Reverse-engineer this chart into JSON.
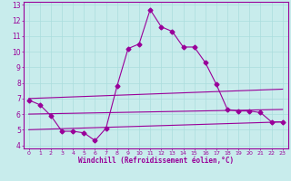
{
  "xlabel": "Windchill (Refroidissement éolien,°C)",
  "xlim": [
    -0.5,
    23.5
  ],
  "ylim": [
    3.8,
    13.2
  ],
  "yticks": [
    4,
    5,
    6,
    7,
    8,
    9,
    10,
    11,
    12,
    13
  ],
  "xticks": [
    0,
    1,
    2,
    3,
    4,
    5,
    6,
    7,
    8,
    9,
    10,
    11,
    12,
    13,
    14,
    15,
    16,
    17,
    18,
    19,
    20,
    21,
    22,
    23
  ],
  "bg_color": "#c8ecec",
  "line_color": "#990099",
  "grid_color": "#aadddd",
  "lines": [
    {
      "x": [
        0,
        1,
        2,
        3,
        4,
        5,
        6,
        7,
        8,
        9,
        10,
        11,
        12,
        13,
        14,
        15,
        16,
        17,
        18,
        19,
        20,
        21,
        22,
        23
      ],
      "y": [
        6.9,
        6.6,
        5.9,
        4.9,
        4.9,
        4.8,
        4.3,
        5.1,
        7.8,
        10.2,
        10.5,
        12.7,
        11.6,
        11.3,
        10.3,
        10.3,
        9.3,
        7.9,
        6.3,
        6.2,
        6.2,
        6.1,
        5.5,
        5.5
      ],
      "marker": "D",
      "markersize": 2.5,
      "linewidth": 0.8
    },
    {
      "x": [
        0,
        23
      ],
      "y": [
        7.0,
        7.6
      ],
      "marker": null,
      "markersize": 0,
      "linewidth": 0.8
    },
    {
      "x": [
        0,
        23
      ],
      "y": [
        6.0,
        6.3
      ],
      "marker": null,
      "markersize": 0,
      "linewidth": 0.8
    },
    {
      "x": [
        0,
        23
      ],
      "y": [
        5.0,
        5.5
      ],
      "marker": null,
      "markersize": 0,
      "linewidth": 0.8
    }
  ]
}
